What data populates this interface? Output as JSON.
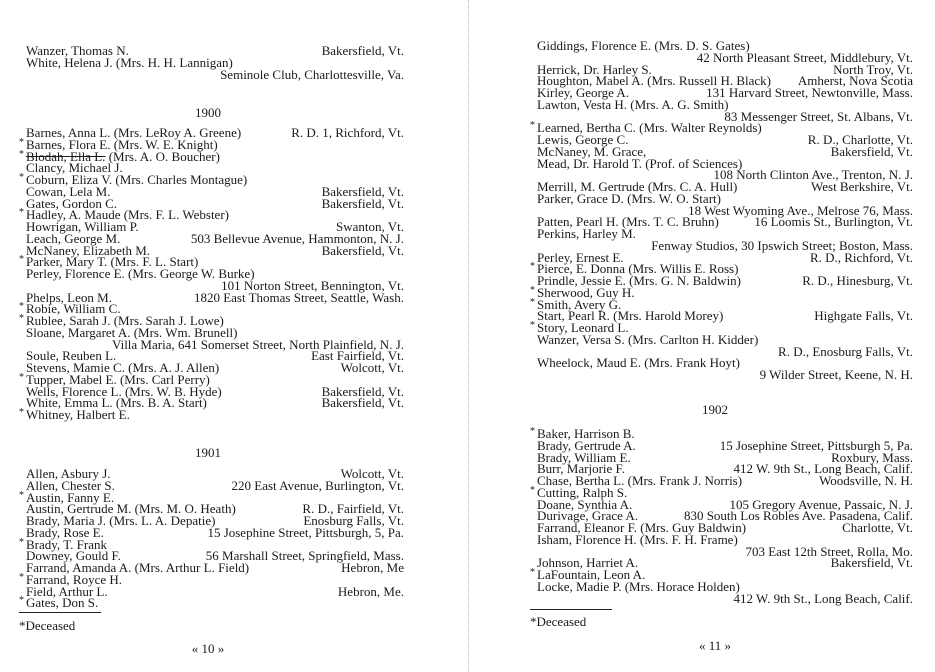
{
  "pages": [
    {
      "page_number": "« 10 »",
      "footnote": "*Deceased",
      "groups": [
        {
          "year": "",
          "lines": [
            {
              "deceased": false,
              "name": "Wanzer, Thomas N.",
              "address": "Bakersfield, Vt."
            },
            {
              "deceased": false,
              "name": "White, Helena J. (Mrs. H. H. Lannigan)",
              "address": ""
            },
            {
              "deceased": false,
              "name": "",
              "address": "Seminole Club, Charlottesville, Va."
            }
          ]
        },
        {
          "year": "1900",
          "lines": [
            {
              "deceased": false,
              "name": "Barnes, Anna L. (Mrs. LeRoy A. Greene)",
              "address": "R. D. 1, Richford, Vt."
            },
            {
              "deceased": true,
              "name": "Barnes, Flora E. (Mrs. W. E. Knight)",
              "address": ""
            },
            {
              "deceased": true,
              "struck": "Blodah, Ella L.",
              "name": " (Mrs. A. O. Boucher)",
              "address": ""
            },
            {
              "deceased": false,
              "name": "Clancy, Michael J.",
              "address": ""
            },
            {
              "deceased": true,
              "name": "Coburn, Eliza V. (Mrs. Charles Montague)",
              "address": ""
            },
            {
              "deceased": false,
              "name": "Cowan, Lela M.",
              "address": "Bakersfield, Vt."
            },
            {
              "deceased": false,
              "name": "Gates, Gordon C.",
              "address": "Bakersfield, Vt."
            },
            {
              "deceased": true,
              "name": "Hadley, A. Maude (Mrs. F. L. Webster)",
              "address": ""
            },
            {
              "deceased": false,
              "name": "Howrigan, William P.",
              "address": "Swanton, Vt."
            },
            {
              "deceased": false,
              "name": "Leach, George M.",
              "address": "503 Bellevue Avenue, Hammonton, N. J."
            },
            {
              "deceased": false,
              "name": "McNaney, Elizabeth M.",
              "address": "Bakersfield, Vt."
            },
            {
              "deceased": true,
              "name": "Parker, Mary T. (Mrs. F. L. Start)",
              "address": ""
            },
            {
              "deceased": false,
              "name": "Perley, Florence E. (Mrs. George W. Burke)",
              "address": ""
            },
            {
              "deceased": false,
              "name": "",
              "address": "101 Norton Street, Bennington, Vt."
            },
            {
              "deceased": false,
              "name": "Phelps, Leon M.",
              "address": "1820 East Thomas Street, Seattle, Wash."
            },
            {
              "deceased": true,
              "name": "Robie, William C.",
              "address": ""
            },
            {
              "deceased": true,
              "name": "Rublee, Sarah J. (Mrs. Sarah J. Lowe)",
              "address": ""
            },
            {
              "deceased": false,
              "name": "Sloane, Margaret A. (Mrs. Wm. Brunell)",
              "address": ""
            },
            {
              "deceased": false,
              "name": "",
              "address": "Villa Maria, 641 Somerset Street, North Plainfield, N. J."
            },
            {
              "deceased": false,
              "name": "Soule, Reuben L.",
              "address": "East Fairfield, Vt."
            },
            {
              "deceased": false,
              "name": "Stevens, Mamie C. (Mrs. A. J. Allen)",
              "address": "Wolcott, Vt."
            },
            {
              "deceased": true,
              "name": "Tupper, Mabel E. (Mrs. Carl Perry)",
              "address": ""
            },
            {
              "deceased": false,
              "name": "Wells, Florence L. (Mrs. W. B. Hyde)",
              "address": "Bakersfield, Vt."
            },
            {
              "deceased": false,
              "name": "White, Emma L. (Mrs. B. A. Start)",
              "address": "Bakersfield, Vt."
            },
            {
              "deceased": true,
              "name": "Whitney, Halbert E.",
              "address": ""
            }
          ]
        },
        {
          "year": "1901",
          "lines": [
            {
              "deceased": false,
              "name": "Allen, Asbury J.",
              "address": "Wolcott, Vt."
            },
            {
              "deceased": false,
              "name": "Allen, Chester S.",
              "address": "220 East Avenue, Burlington, Vt."
            },
            {
              "deceased": true,
              "name": "Austin, Fanny E.",
              "address": ""
            },
            {
              "deceased": false,
              "name": "Austin, Gertrude M. (Mrs. M. O. Heath)",
              "address": "R. D., Fairfield, Vt."
            },
            {
              "deceased": false,
              "name": "Brady, Maria J. (Mrs. L. A. Depatie)",
              "address": "Enosburg Falls, Vt."
            },
            {
              "deceased": false,
              "name": "Brady, Rose E.",
              "address": "15 Josephine Street, Pittsburgh, 5, Pa."
            },
            {
              "deceased": true,
              "name": "Brady, T. Frank",
              "address": ""
            },
            {
              "deceased": false,
              "name": "Downey, Gould F.",
              "address": "56 Marshall Street, Springfield, Mass."
            },
            {
              "deceased": false,
              "name": "Farrand, Amanda A. (Mrs. Arthur L. Field)",
              "address": "Hebron, Me"
            },
            {
              "deceased": true,
              "name": "Farrand, Royce H.",
              "address": ""
            },
            {
              "deceased": false,
              "name": "Field, Arthur L.",
              "address": "Hebron, Me."
            },
            {
              "deceased": true,
              "name": "Gates, Don S.",
              "address": ""
            }
          ]
        }
      ]
    },
    {
      "page_number": "« 11 »",
      "footnote": "*Deceased",
      "groups": [
        {
          "year": "",
          "lines": [
            {
              "deceased": false,
              "name": "Giddings, Florence E. (Mrs. D. S. Gates)",
              "address": ""
            },
            {
              "deceased": false,
              "name": "",
              "address": "42 North Pleasant Street, Middlebury, Vt."
            },
            {
              "deceased": false,
              "name": "Herrick, Dr. Harley S.",
              "address": "North Troy, Vt."
            },
            {
              "deceased": false,
              "name": "Houghton, Mabel A. (Mrs. Russell H. Black)",
              "address": "Amherst, Nova Scotia"
            },
            {
              "deceased": false,
              "name": "Kirley, George A.",
              "address": "131 Harvard Street, Newtonville, Mass."
            },
            {
              "deceased": false,
              "name": "Lawton, Vesta H. (Mrs. A. G. Smith)",
              "address": ""
            },
            {
              "deceased": false,
              "name": "",
              "address": "83 Messenger Street, St. Albans, Vt."
            },
            {
              "deceased": true,
              "name": "Learned, Bertha C. (Mrs. Walter Reynolds)",
              "address": ""
            },
            {
              "deceased": false,
              "name": "Lewis, George C.",
              "address": "R. D., Charlotte, Vt."
            },
            {
              "deceased": false,
              "name": "McNaney, M. Grace,",
              "address": "Bakersfield, Vt."
            },
            {
              "deceased": false,
              "name": "Mead, Dr. Harold T. (Prof. of Sciences)",
              "address": ""
            },
            {
              "deceased": false,
              "name": "",
              "address": "108 North Clinton Ave., Trenton, N. J."
            },
            {
              "deceased": false,
              "name": "Merrill, M. Gertrude (Mrs. C. A. Hull)",
              "address": "West Berkshire, Vt."
            },
            {
              "deceased": false,
              "name": "Parker, Grace D. (Mrs. W. O. Start)",
              "address": ""
            },
            {
              "deceased": false,
              "name": "",
              "address": "18 West Wyoming Ave., Melrose 76, Mass."
            },
            {
              "deceased": false,
              "name": "Patten, Pearl H. (Mrs. T. C. Bruhn)",
              "address": "16 Loomis St., Burlington, Vt."
            },
            {
              "deceased": false,
              "name": "Perkins, Harley M.",
              "address": ""
            },
            {
              "deceased": false,
              "name": "",
              "address": "Fenway Studios, 30 Ipswich Street; Boston, Mass."
            },
            {
              "deceased": false,
              "name": "Perley, Ernest E.",
              "address": "R. D., Richford, Vt."
            },
            {
              "deceased": true,
              "name": "Pierce, E. Donna (Mrs. Willis E. Ross)",
              "address": ""
            },
            {
              "deceased": false,
              "name": "Prindle, Jessie E. (Mrs. G. N. Baldwin)",
              "address": "R. D., Hinesburg, Vt."
            },
            {
              "deceased": true,
              "name": "Sherwood, Guy H.",
              "address": ""
            },
            {
              "deceased": true,
              "name": "Smith, Avery G.",
              "address": ""
            },
            {
              "deceased": false,
              "name": "Start, Pearl R. (Mrs. Harold Morey)",
              "address": "Highgate Falls, Vt."
            },
            {
              "deceased": true,
              "name": "Story, Leonard L.",
              "address": ""
            },
            {
              "deceased": false,
              "name": "Wanzer, Versa S. (Mrs. Carlton H. Kidder)",
              "address": ""
            },
            {
              "deceased": false,
              "name": "",
              "address": "R. D., Enosburg Falls, Vt."
            },
            {
              "deceased": false,
              "name": "Wheelock, Maud E. (Mrs. Frank Hoyt)",
              "address": ""
            },
            {
              "deceased": false,
              "name": "",
              "address": "9 Wilder Street, Keene, N. H."
            }
          ]
        },
        {
          "year": "1902",
          "lines": [
            {
              "deceased": true,
              "name": "Baker, Harrison B.",
              "address": ""
            },
            {
              "deceased": false,
              "name": "Brady, Gertrude A.",
              "address": "15 Josephine Street, Pittsburgh 5, Pa."
            },
            {
              "deceased": false,
              "name": "Brady, William E.",
              "address": "Roxbury, Mass."
            },
            {
              "deceased": false,
              "name": "Burr, Marjorie F.",
              "address": "412 W. 9th St., Long Beach, Calif."
            },
            {
              "deceased": false,
              "name": "Chase, Bertha L. (Mrs. Frank J. Norris)",
              "address": "Woodsville, N. H."
            },
            {
              "deceased": true,
              "name": "Cutting, Ralph S.",
              "address": ""
            },
            {
              "deceased": false,
              "name": "Doane, Synthia A.",
              "address": "105 Gregory Avenue, Passaic, N. J."
            },
            {
              "deceased": false,
              "name": "Durivage, Grace A.",
              "address": "830 South Los Robles Ave. Pasadena, Calif."
            },
            {
              "deceased": false,
              "name": "Farrand, Eleanor F. (Mrs. Guy Baldwin)",
              "address": "Charlotte, Vt."
            },
            {
              "deceased": false,
              "name": "Isham, Florence H. (Mrs. F. H. Frame)",
              "address": ""
            },
            {
              "deceased": false,
              "name": "",
              "address": "703 East 12th Street, Rolla, Mo."
            },
            {
              "deceased": false,
              "name": "Johnson, Harriet A.",
              "address": "Bakersfield, Vt."
            },
            {
              "deceased": true,
              "name": "LaFountain, Leon A.",
              "address": ""
            },
            {
              "deceased": false,
              "name": "Locke, Madie P. (Mrs. Horace Holden)",
              "address": ""
            },
            {
              "deceased": false,
              "name": "",
              "address": "412 W. 9th St., Long Beach, Calif."
            }
          ]
        }
      ]
    }
  ]
}
